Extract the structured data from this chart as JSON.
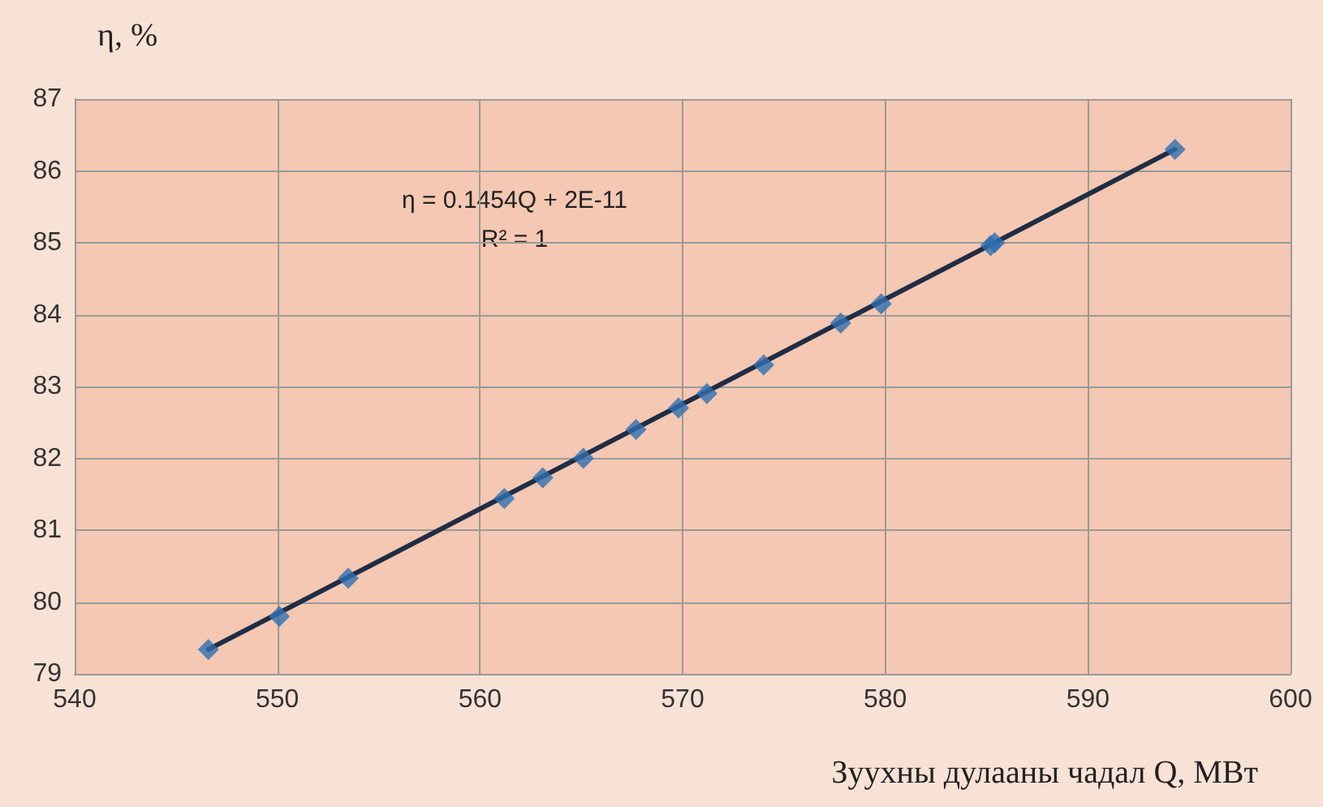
{
  "chart_data": {
    "type": "scatter",
    "xlabel": "Зуухны дулааны чадал Q, МВт",
    "ylabel": "η, %",
    "annotations": [
      "η = 0.1454Q + 2E-11",
      "R² = 1"
    ],
    "xlim": [
      540,
      600
    ],
    "xticks": [
      540,
      550,
      560,
      570,
      580,
      590,
      600
    ],
    "ylim": [
      79,
      87
    ],
    "yticks": [
      79,
      80,
      81,
      82,
      83,
      84,
      85,
      86,
      87
    ],
    "grid": true,
    "marker": "diamond",
    "series": [
      {
        "type": "line",
        "color": "#1f2d45",
        "marker": "none",
        "line_style": "solid",
        "x": [
          546.6,
          594.3
        ],
        "values": [
          79.34,
          86.3
        ]
      },
      {
        "color": "#2f6fb0",
        "x": [
          546.6,
          550.1,
          553.5,
          561.2,
          563.1,
          565.1,
          567.7,
          569.8,
          571.2,
          574.0,
          577.8,
          579.8,
          585.2,
          585.4,
          594.3
        ],
        "values": [
          79.34,
          79.8,
          80.33,
          81.44,
          81.73,
          82.0,
          82.4,
          82.7,
          82.9,
          83.3,
          83.88,
          84.15,
          84.96,
          85.0,
          86.3
        ]
      }
    ]
  }
}
